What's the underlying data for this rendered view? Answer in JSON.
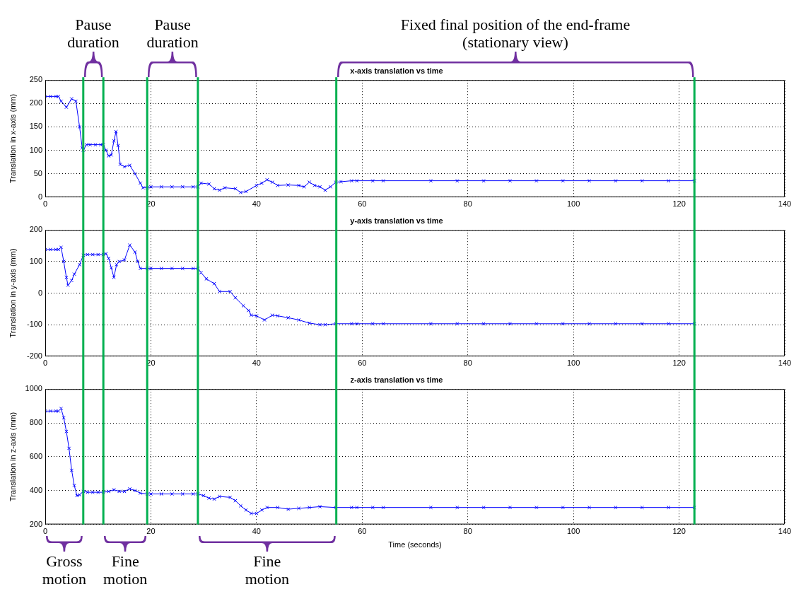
{
  "chart_data": [
    {
      "type": "line",
      "title": "x-axis translation vs time",
      "ylabel": "Translation in x-axis (mm)",
      "marker": "cross",
      "grid": true,
      "legend": false,
      "xlim": [
        0,
        140
      ],
      "xticks": [
        0,
        20,
        40,
        60,
        80,
        100,
        120,
        140
      ],
      "ylim": [
        0,
        250
      ],
      "yticks": [
        0,
        50,
        100,
        150,
        200,
        250
      ],
      "x": [
        0,
        1,
        2,
        2.5,
        3,
        4,
        5,
        5.8,
        6.5,
        7,
        7.2,
        7.8,
        8.5,
        9.5,
        10.5,
        11,
        11.5,
        12,
        12.5,
        13,
        13.4,
        13.8,
        14.2,
        15,
        16,
        17,
        18,
        18.5,
        19.3,
        20,
        22,
        24,
        26,
        28,
        28.9,
        29.5,
        31,
        32,
        33,
        34,
        36,
        37,
        38,
        40,
        41,
        42,
        43,
        44,
        46,
        48,
        49,
        50,
        51,
        52,
        53,
        54,
        55,
        56,
        58,
        59,
        62,
        64,
        73,
        78,
        83,
        88,
        93,
        98,
        103,
        108,
        113,
        118,
        122.9
      ],
      "series": [
        {
          "color": "#0000ff",
          "values": [
            215,
            215,
            215,
            215,
            205,
            192,
            210,
            205,
            150,
            105,
            100,
            112,
            112,
            112,
            112,
            112,
            100,
            88,
            90,
            120,
            140,
            110,
            70,
            65,
            68,
            50,
            30,
            20,
            20,
            22,
            22,
            22,
            22,
            22,
            22,
            30,
            28,
            18,
            15,
            20,
            18,
            10,
            12,
            25,
            30,
            37,
            32,
            25,
            26,
            25,
            22,
            32,
            25,
            22,
            15,
            22,
            32,
            33,
            35,
            35,
            35,
            35,
            35,
            35,
            35,
            35,
            35,
            35,
            35,
            35,
            35,
            35,
            35
          ]
        }
      ],
      "ref_lines": [
        {
          "axis": "x",
          "value": 7.2,
          "color": "#00b050"
        },
        {
          "axis": "x",
          "value": 11,
          "color": "#00b050"
        },
        {
          "axis": "x",
          "value": 19.3,
          "color": "#00b050"
        },
        {
          "axis": "x",
          "value": 28.9,
          "color": "#00b050"
        },
        {
          "axis": "x",
          "value": 55.1,
          "color": "#00b050"
        },
        {
          "axis": "x",
          "value": 122.9,
          "color": "#00b050"
        }
      ],
      "annotations": [
        "Pause duration",
        "Pause duration",
        "Fixed final position of the end-frame (stationary view)"
      ]
    },
    {
      "type": "line",
      "title": "y-axis translation vs time",
      "ylabel": "Translation in y-axis (mm)",
      "marker": "cross",
      "grid": true,
      "legend": false,
      "xlim": [
        0,
        140
      ],
      "xticks": [
        0,
        20,
        40,
        60,
        80,
        100,
        120,
        140
      ],
      "ylim": [
        -200,
        200
      ],
      "yticks": [
        -200,
        -100,
        0,
        100,
        200
      ],
      "x": [
        0,
        1,
        2,
        2.5,
        3,
        3.5,
        4,
        4.3,
        5,
        5.5,
        6.5,
        7.2,
        8,
        9,
        10,
        11,
        11.5,
        12,
        12.5,
        13,
        13.5,
        14,
        15,
        16,
        17,
        17.5,
        18,
        19.3,
        20,
        22,
        24,
        26,
        28,
        28.9,
        29.5,
        30.5,
        32,
        33,
        35,
        36,
        37.5,
        38.5,
        39,
        40,
        41.5,
        43,
        44,
        46,
        48,
        50,
        52,
        53,
        55,
        58,
        59,
        62,
        64,
        73,
        78,
        83,
        88,
        93,
        98,
        103,
        108,
        113,
        118,
        122.9
      ],
      "series": [
        {
          "color": "#0000ff",
          "values": [
            138,
            138,
            138,
            138,
            145,
            100,
            50,
            25,
            40,
            60,
            90,
            120,
            122,
            122,
            122,
            122,
            125,
            110,
            80,
            50,
            90,
            100,
            105,
            152,
            130,
            100,
            78,
            78,
            78,
            78,
            78,
            78,
            78,
            78,
            65,
            45,
            30,
            5,
            5,
            -15,
            -40,
            -55,
            -70,
            -72,
            -85,
            -70,
            -72,
            -78,
            -85,
            -95,
            -100,
            -100,
            -97,
            -97,
            -97,
            -97,
            -97,
            -97,
            -97,
            -97,
            -97,
            -97,
            -97,
            -97,
            -97,
            -97,
            -97,
            -97
          ]
        }
      ],
      "ref_lines": [
        {
          "axis": "x",
          "value": 7.2,
          "color": "#00b050"
        },
        {
          "axis": "x",
          "value": 11,
          "color": "#00b050"
        },
        {
          "axis": "x",
          "value": 19.3,
          "color": "#00b050"
        },
        {
          "axis": "x",
          "value": 28.9,
          "color": "#00b050"
        },
        {
          "axis": "x",
          "value": 55.1,
          "color": "#00b050"
        },
        {
          "axis": "x",
          "value": 122.9,
          "color": "#00b050"
        }
      ]
    },
    {
      "type": "line",
      "title": "z-axis translation vs time",
      "xlabel": "Time (seconds)",
      "ylabel": "Translation in z-axis (mm)",
      "marker": "cross",
      "grid": true,
      "legend": false,
      "xlim": [
        0,
        140
      ],
      "xticks": [
        0,
        20,
        40,
        60,
        80,
        100,
        120,
        140
      ],
      "ylim": [
        200,
        1000
      ],
      "yticks": [
        200,
        400,
        600,
        800,
        1000
      ],
      "x": [
        0,
        1,
        2,
        2.5,
        3,
        3.5,
        4,
        4.5,
        5,
        5.5,
        6,
        6.5,
        7.2,
        8,
        9,
        10,
        11,
        12,
        13,
        14,
        15,
        16,
        17,
        18,
        19.3,
        20,
        22,
        24,
        26,
        28,
        28.9,
        30,
        31,
        32,
        33,
        35,
        36,
        37,
        38,
        39,
        40,
        41,
        42,
        44,
        46,
        48,
        50,
        52,
        55,
        58,
        59,
        62,
        64,
        73,
        78,
        83,
        88,
        93,
        98,
        103,
        108,
        113,
        118,
        122.9
      ],
      "series": [
        {
          "color": "#0000ff",
          "values": [
            870,
            870,
            870,
            870,
            885,
            830,
            750,
            650,
            520,
            430,
            370,
            375,
            395,
            390,
            390,
            390,
            390,
            395,
            405,
            395,
            395,
            410,
            400,
            385,
            380,
            380,
            380,
            380,
            380,
            380,
            380,
            370,
            355,
            350,
            365,
            360,
            340,
            310,
            285,
            265,
            265,
            285,
            300,
            300,
            290,
            295,
            300,
            305,
            300,
            300,
            300,
            300,
            300,
            300,
            300,
            300,
            300,
            300,
            300,
            300,
            300,
            300,
            300,
            300
          ]
        }
      ],
      "ref_lines": [
        {
          "axis": "x",
          "value": 7.2,
          "color": "#00b050"
        },
        {
          "axis": "x",
          "value": 11,
          "color": "#00b050"
        },
        {
          "axis": "x",
          "value": 19.3,
          "color": "#00b050"
        },
        {
          "axis": "x",
          "value": 28.9,
          "color": "#00b050"
        },
        {
          "axis": "x",
          "value": 55.1,
          "color": "#00b050"
        },
        {
          "axis": "x",
          "value": 122.9,
          "color": "#00b050"
        }
      ],
      "annotations": [
        "Gross motion",
        "Fine motion",
        "Fine motion"
      ]
    }
  ]
}
